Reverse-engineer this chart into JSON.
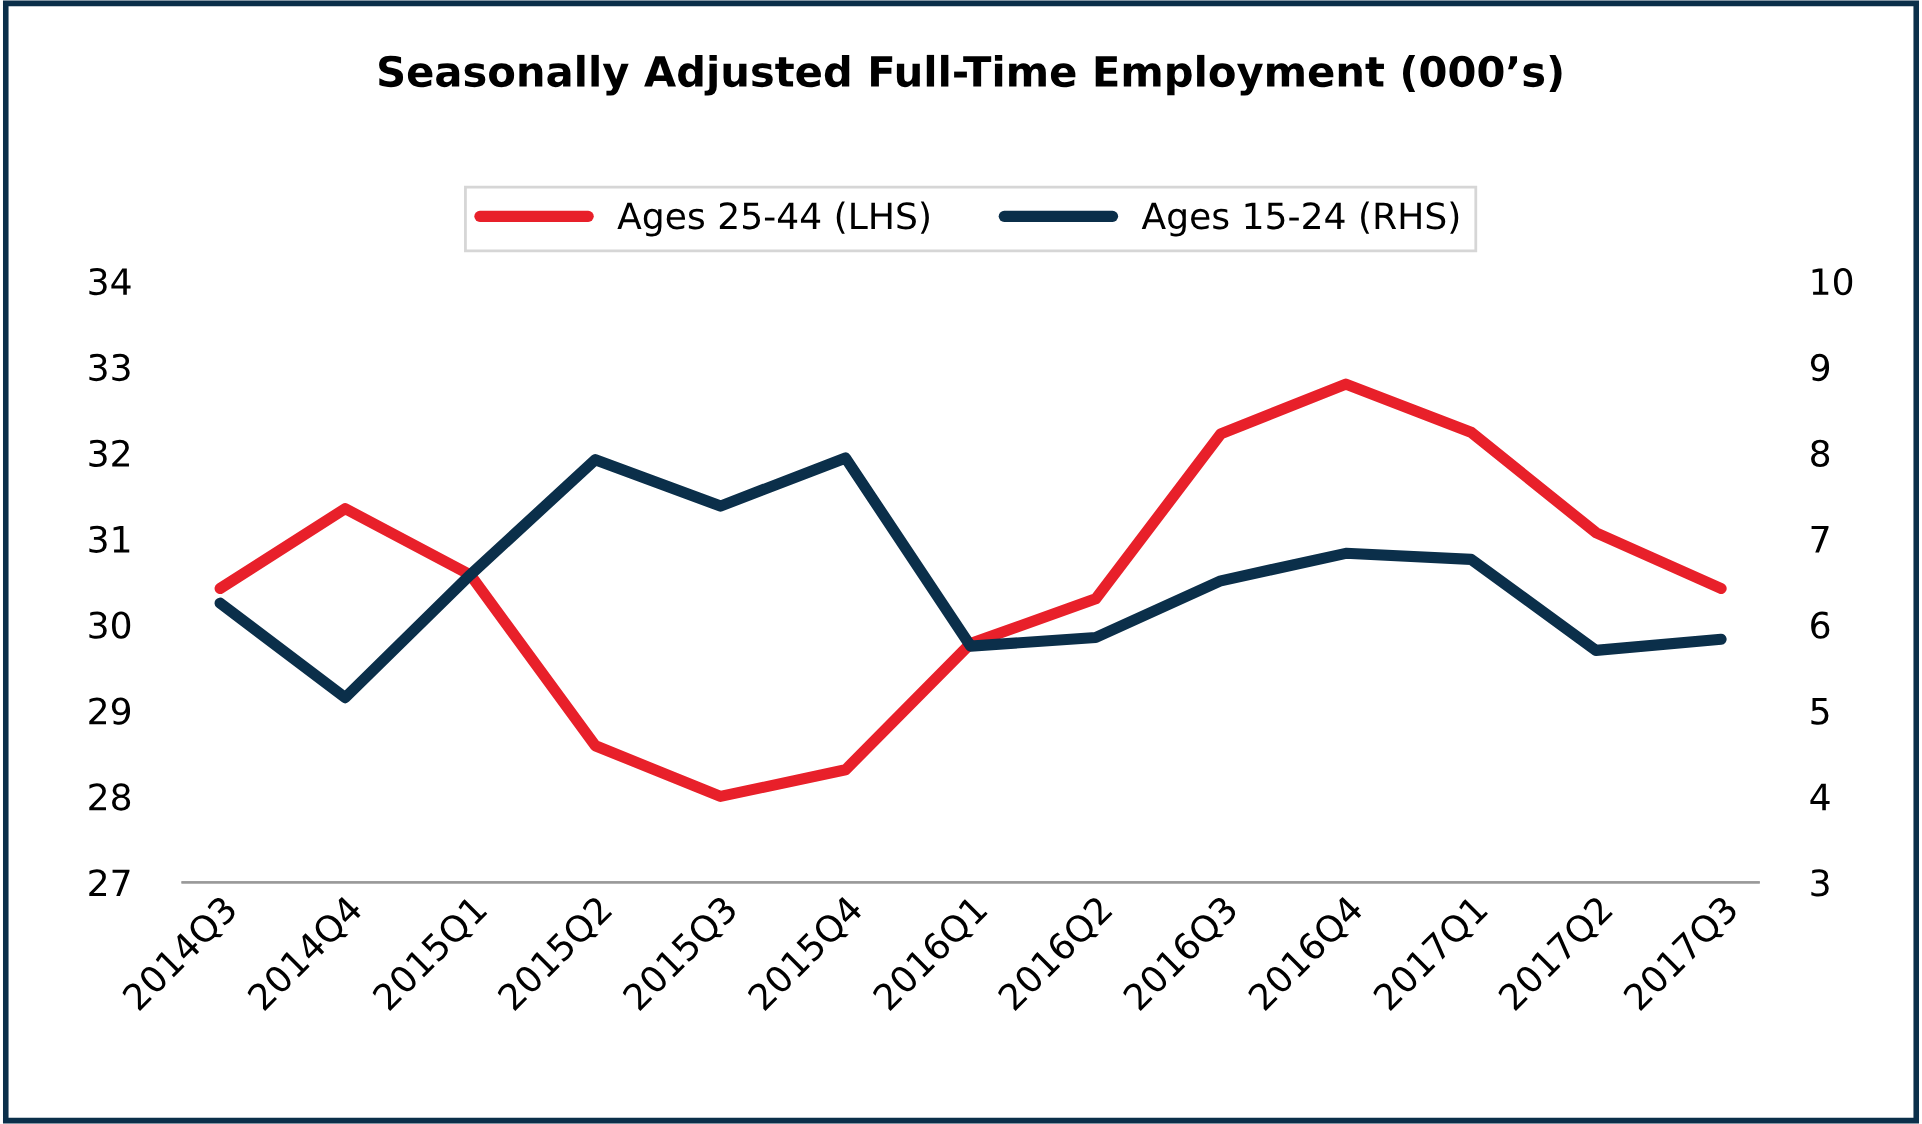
{
  "chart_data": {
    "type": "line",
    "title": "Seasonally Adjusted Full-Time Employment (000’s)",
    "categories": [
      "2014Q3",
      "2014Q4",
      "2015Q1",
      "2015Q2",
      "2015Q3",
      "2015Q4",
      "2016Q1",
      "2016Q2",
      "2016Q3",
      "2016Q4",
      "2017Q1",
      "2017Q2",
      "2017Q3"
    ],
    "series": [
      {
        "name": "Ages 25-44 (LHS)",
        "color": "#e8202a",
        "values": [
          30.42,
          31.35,
          30.58,
          28.59,
          28.0,
          28.31,
          29.78,
          30.3,
          32.22,
          32.8,
          32.24,
          31.07,
          30.42
        ]
      },
      {
        "name": "Ages 15-24 (RHS)",
        "color": "#0b2f4a",
        "axis": "y2",
        "values": [
          6.25,
          5.15,
          6.58,
          7.92,
          7.38,
          7.94,
          5.75,
          5.85,
          6.51,
          6.83,
          6.76,
          5.7,
          5.83
        ]
      }
    ],
    "ylim": [
      27,
      34
    ],
    "yticks": [
      27,
      28,
      29,
      30,
      31,
      32,
      33,
      34
    ],
    "y2lim": [
      3,
      10
    ],
    "y2ticks": [
      3,
      4,
      5,
      6,
      7,
      8,
      9,
      10
    ],
    "grid": false,
    "legend": "top",
    "marker": "none",
    "line_style": "solid"
  }
}
